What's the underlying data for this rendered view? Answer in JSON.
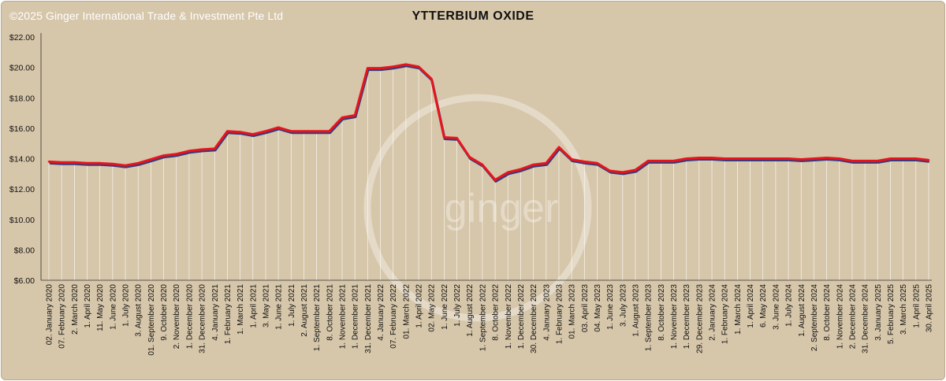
{
  "copyright": "©2025 Ginger International Trade & Investment Pte Ltd",
  "watermark": "ginger",
  "colors": {
    "background": "#d6c6aa",
    "line": "#e8141c",
    "shadow": "#3a3a7a",
    "drop_lines": "#ffffff",
    "axis": "#333333"
  },
  "chart_data": {
    "type": "line",
    "title": "YTTERBIUM OXIDE",
    "xlabel": "",
    "ylabel": "",
    "ylim": [
      6,
      22
    ],
    "ytick_values": [
      6,
      8,
      10,
      12,
      14,
      16,
      18,
      20,
      22
    ],
    "ytick_labels": [
      "$6.00",
      "$8.00",
      "$10.00",
      "$12.00",
      "$14.00",
      "$16.00",
      "$18.00",
      "$20.00",
      "$22.00"
    ],
    "grid": false,
    "legend": "none",
    "categories": [
      "02. January 2020",
      "07. February 2020",
      "2. March 2020",
      "1. April 2020",
      "11. May 2020",
      "1. June 2020",
      "1. July 2020",
      "3. August 2020",
      "01. September 2020",
      "9. October 2020",
      "2. November 2020",
      "1. December 2020",
      "31. December 2020",
      "4. January 2021",
      "1. February 2021",
      "1. March 2021",
      "1. April 2021",
      "3. May 2021",
      "1. June 2021",
      "1. July 2021",
      "2. August 2021",
      "1. September 2021",
      "8. October 2021",
      "1. November 2021",
      "1. December 2021",
      "31. December 2021",
      "4. January 2022",
      "07. February 2022",
      "01. March 2022",
      "1. April 2022",
      "02. May 2022",
      "1. June 2022",
      "1. July 2022",
      "1. August 2022",
      "1. September 2022",
      "8. October 2022",
      "1. November 2022",
      "1. December 2022",
      "30. December 2022",
      "4. January 2023",
      "1. February 2023",
      "01. March 2023",
      "03. April 2023",
      "04. May 2023",
      "1. June 2023",
      "3. July 2023",
      "1. August 2023",
      "1. September 2023",
      "8. October 2023",
      "1. November 2023",
      "1. December 2023",
      "29. December 2023",
      "2. January 2024",
      "1. February 2024",
      "1. March 2024",
      "1. April 2024",
      "6. May 2024",
      "3. June 2024",
      "1. July 2024",
      "1. August 2024",
      "2. September 2024",
      "8. October 2024",
      "1. November 2024",
      "2. December 2024",
      "31. December 2024",
      "3. January 2025",
      "5. February 2025",
      "3. March 2025",
      "1. April 2025",
      "30. April 2025"
    ],
    "series": [
      {
        "values": [
          13.8,
          13.75,
          13.75,
          13.7,
          13.7,
          13.65,
          13.55,
          13.7,
          13.95,
          14.2,
          14.3,
          14.5,
          14.6,
          14.65,
          15.8,
          15.75,
          15.6,
          15.8,
          16.05,
          15.8,
          15.8,
          15.8,
          15.8,
          16.7,
          16.85,
          19.95,
          19.95,
          20.05,
          20.2,
          20.05,
          19.25,
          15.4,
          15.35,
          14.1,
          13.6,
          12.6,
          13.1,
          13.3,
          13.6,
          13.7,
          14.75,
          13.95,
          13.8,
          13.7,
          13.2,
          13.1,
          13.25,
          13.85,
          13.85,
          13.85,
          14.0,
          14.05,
          14.05,
          14.0,
          14.0,
          14.0,
          14.0,
          14.0,
          14.0,
          13.95,
          14.0,
          14.05,
          14.0,
          13.85,
          13.85,
          13.85,
          14.0,
          14.0,
          14.0,
          13.9
        ]
      }
    ]
  }
}
